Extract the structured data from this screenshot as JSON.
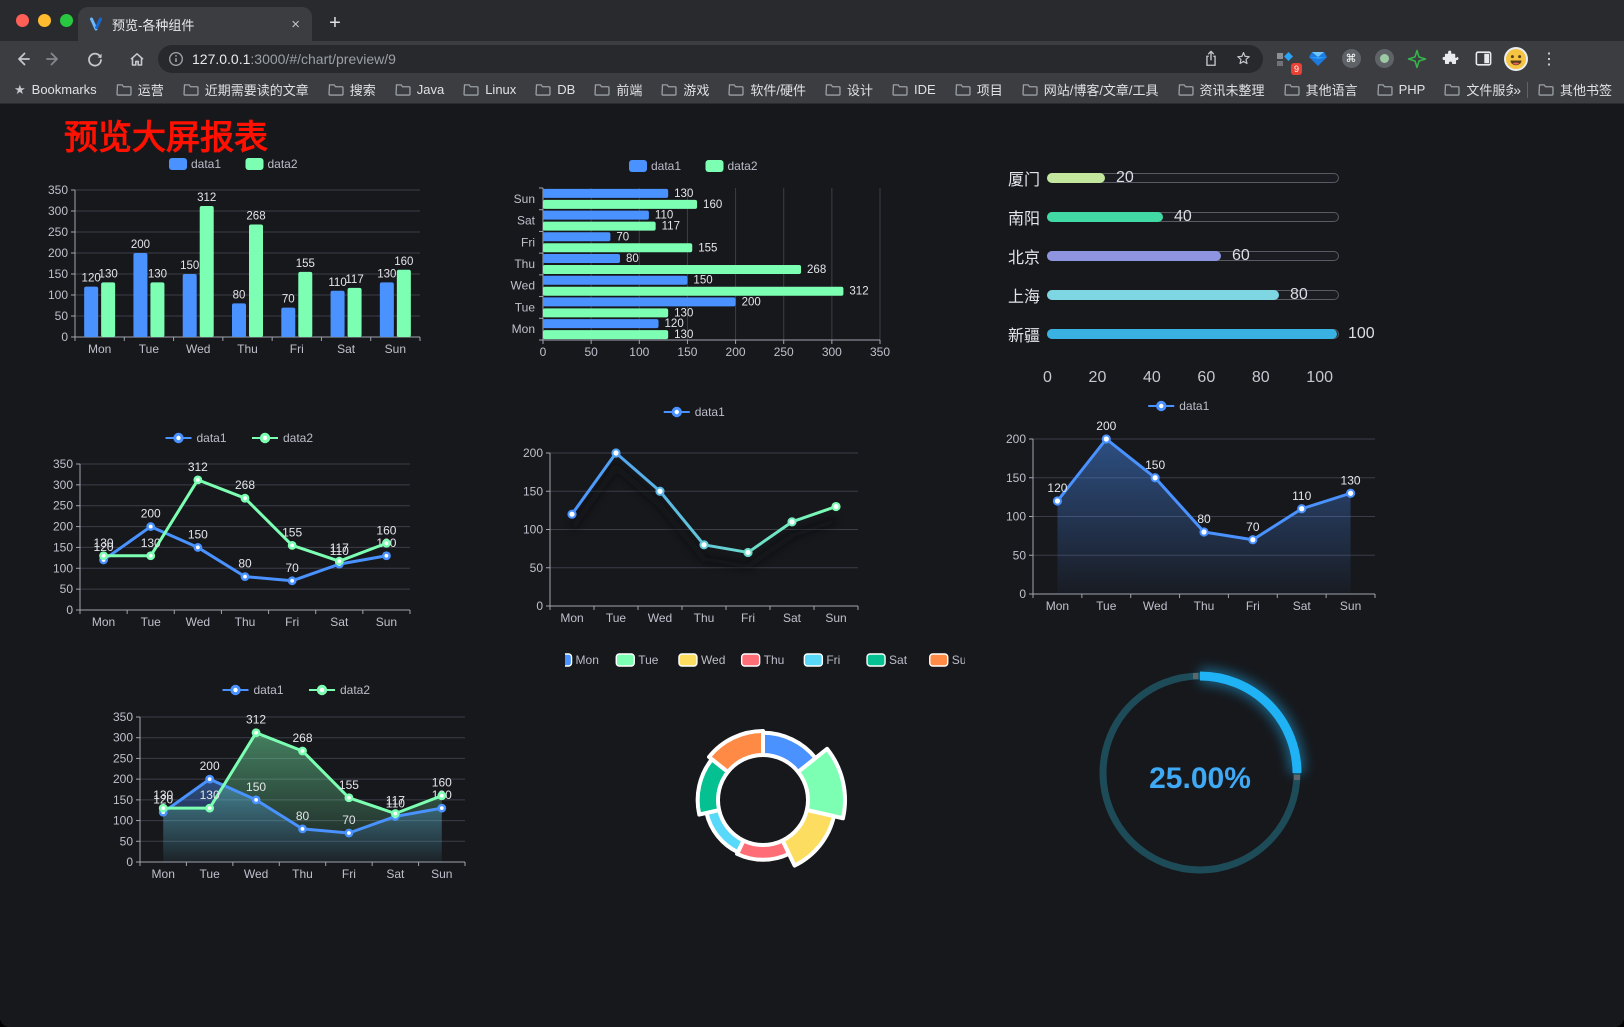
{
  "browser": {
    "tab_title": "预览-各种组件",
    "url_host": "127.0.0.1",
    "url_path": ":3000/#/chart/preview/9",
    "extensions_badge": "9",
    "bookmarks_label": "Bookmarks",
    "bookmark_folders": [
      "运营",
      "近期需要读的文章",
      "搜索",
      "Java",
      "Linux",
      "DB",
      "前端",
      "游戏",
      "软件/硬件",
      "设计",
      "IDE",
      "项目",
      "网站/博客/文章/工具",
      "资讯未整理",
      "其他语言",
      "PHP",
      "文件服务器"
    ],
    "other_bookmarks": "其他书签"
  },
  "icons": {
    "close": "×",
    "plus": "+",
    "menu": "⋮",
    "star": "★",
    "overflow": "»",
    "command": "⌘"
  },
  "page": {
    "title": "预览大屏报表"
  },
  "chart_data": [
    {
      "id": "bar_grouped",
      "type": "bar",
      "title": "",
      "categories": [
        "Mon",
        "Tue",
        "Wed",
        "Thu",
        "Fri",
        "Sat",
        "Sun"
      ],
      "series": [
        {
          "name": "data1",
          "color": "#4992ff",
          "values": [
            120,
            200,
            150,
            80,
            70,
            110,
            130
          ]
        },
        {
          "name": "data2",
          "color": "#7cffb2",
          "values": [
            130,
            130,
            312,
            268,
            155,
            117,
            160
          ]
        }
      ],
      "ylim": [
        0,
        350
      ],
      "ytick": 50,
      "legend_position": "top",
      "grid": true,
      "value_labels": true
    },
    {
      "id": "bar_horizontal",
      "type": "bar",
      "orientation": "horizontal",
      "categories": [
        "Mon",
        "Tue",
        "Wed",
        "Thu",
        "Fri",
        "Sat",
        "Sun"
      ],
      "series": [
        {
          "name": "data1",
          "color": "#4992ff",
          "values": [
            120,
            200,
            150,
            80,
            70,
            110,
            130
          ]
        },
        {
          "name": "data2",
          "color": "#7cffb2",
          "values": [
            130,
            130,
            312,
            268,
            155,
            117,
            160
          ]
        }
      ],
      "xlim": [
        0,
        350
      ],
      "xtick": 50,
      "legend_position": "top",
      "grid": true,
      "value_labels": true
    },
    {
      "id": "progress",
      "type": "bar",
      "subtype": "progress-list",
      "items": [
        {
          "label": "厦门",
          "value": 20,
          "color": "#c3e79c"
        },
        {
          "label": "南阳",
          "value": 40,
          "color": "#41d9a4"
        },
        {
          "label": "北京",
          "value": 60,
          "color": "#8f94e0"
        },
        {
          "label": "上海",
          "value": 80,
          "color": "#7fd6e3"
        },
        {
          "label": "新疆",
          "value": 100,
          "color": "#39b2e3"
        }
      ],
      "xlim": [
        0,
        100
      ],
      "xticks": [
        0,
        20,
        40,
        60,
        80,
        100
      ]
    },
    {
      "id": "line_double",
      "type": "line",
      "categories": [
        "Mon",
        "Tue",
        "Wed",
        "Thu",
        "Fri",
        "Sat",
        "Sun"
      ],
      "series": [
        {
          "name": "data1",
          "color": "#4992ff",
          "values": [
            120,
            200,
            150,
            80,
            70,
            110,
            130
          ]
        },
        {
          "name": "data2",
          "color": "#7cffb2",
          "values": [
            130,
            130,
            312,
            268,
            155,
            117,
            160
          ]
        }
      ],
      "ylim": [
        0,
        350
      ],
      "ytick": 50,
      "legend_position": "top",
      "markers": true,
      "value_labels": true
    },
    {
      "id": "line_gradient",
      "type": "line",
      "categories": [
        "Mon",
        "Tue",
        "Wed",
        "Thu",
        "Fri",
        "Sat",
        "Sun"
      ],
      "series": [
        {
          "name": "data1",
          "color": "#4992ff",
          "color_end": "#7cffb2",
          "values": [
            120,
            200,
            150,
            80,
            70,
            110,
            130
          ]
        }
      ],
      "ylim": [
        0,
        200
      ],
      "ytick": 50,
      "legend_position": "top",
      "markers": true,
      "value_labels": false
    },
    {
      "id": "area_single",
      "type": "area",
      "categories": [
        "Mon",
        "Tue",
        "Wed",
        "Thu",
        "Fri",
        "Sat",
        "Sun"
      ],
      "series": [
        {
          "name": "data1",
          "color": "#4992ff",
          "area": true,
          "values": [
            120,
            200,
            150,
            80,
            70,
            110,
            130
          ]
        }
      ],
      "ylim": [
        0,
        200
      ],
      "ytick": 50,
      "legend_position": "top",
      "markers": true,
      "value_labels": true
    },
    {
      "id": "area_double",
      "type": "area",
      "categories": [
        "Mon",
        "Tue",
        "Wed",
        "Thu",
        "Fri",
        "Sat",
        "Sun"
      ],
      "series": [
        {
          "name": "data1",
          "color": "#4992ff",
          "area": true,
          "values": [
            120,
            200,
            150,
            80,
            70,
            110,
            130
          ]
        },
        {
          "name": "data2",
          "color": "#7cffb2",
          "area": true,
          "values": [
            130,
            130,
            312,
            268,
            155,
            117,
            160
          ]
        }
      ],
      "ylim": [
        0,
        350
      ],
      "ytick": 50,
      "legend_position": "top",
      "markers": true,
      "value_labels": true
    },
    {
      "id": "rose",
      "type": "pie",
      "rose": "area",
      "categories": [
        "Mon",
        "Tue",
        "Wed",
        "Thu",
        "Fri",
        "Sat",
        "Sun"
      ],
      "values": [
        120,
        200,
        150,
        80,
        70,
        110,
        130
      ],
      "colors": [
        "#4992ff",
        "#7cffb2",
        "#fddd60",
        "#ff6e76",
        "#58d9f9",
        "#05c091",
        "#ff8a45"
      ],
      "legend_position": "top",
      "donut": true
    },
    {
      "id": "gauge",
      "type": "gauge",
      "value": 25,
      "max": 100,
      "display": "25.00%",
      "color": "#1fb2f5",
      "track_color": "#1e4b58",
      "text_color": "#3fa9f5"
    }
  ]
}
